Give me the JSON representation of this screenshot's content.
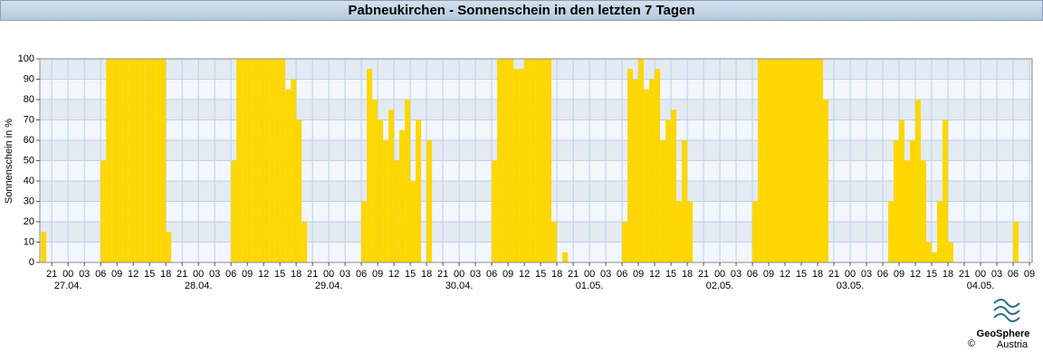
{
  "chart_data": {
    "type": "bar",
    "title": "Pabneukirchen - Sonnenschein in den letzten 7 Tagen",
    "y_label": "Sonnenschein in %",
    "color": "#ffd700",
    "grid": true,
    "xlim": [
      18.8,
      201.5
    ],
    "ylim": [
      0,
      100
    ],
    "yticks": [
      0,
      10,
      20,
      30,
      40,
      50,
      60,
      70,
      80,
      90,
      100
    ],
    "xticks": [
      {
        "value": 21,
        "label": "21"
      },
      {
        "value": 24,
        "label": "00"
      },
      {
        "value": 27,
        "label": "03"
      },
      {
        "value": 30,
        "label": "06"
      },
      {
        "value": 33,
        "label": "09"
      },
      {
        "value": 36,
        "label": "12"
      },
      {
        "value": 39,
        "label": "15"
      },
      {
        "value": 42,
        "label": "18"
      },
      {
        "value": 45,
        "label": "21"
      },
      {
        "value": 48,
        "label": "00"
      },
      {
        "value": 51,
        "label": "03"
      },
      {
        "value": 54,
        "label": "06"
      },
      {
        "value": 57,
        "label": "09"
      },
      {
        "value": 60,
        "label": "12"
      },
      {
        "value": 63,
        "label": "15"
      },
      {
        "value": 66,
        "label": "18"
      },
      {
        "value": 69,
        "label": "21"
      },
      {
        "value": 72,
        "label": "00"
      },
      {
        "value": 75,
        "label": "03"
      },
      {
        "value": 78,
        "label": "06"
      },
      {
        "value": 81,
        "label": "09"
      },
      {
        "value": 84,
        "label": "12"
      },
      {
        "value": 87,
        "label": "15"
      },
      {
        "value": 90,
        "label": "18"
      },
      {
        "value": 93,
        "label": "21"
      },
      {
        "value": 96,
        "label": "00"
      },
      {
        "value": 99,
        "label": "03"
      },
      {
        "value": 102,
        "label": "06"
      },
      {
        "value": 105,
        "label": "09"
      },
      {
        "value": 108,
        "label": "12"
      },
      {
        "value": 111,
        "label": "15"
      },
      {
        "value": 114,
        "label": "18"
      },
      {
        "value": 117,
        "label": "21"
      },
      {
        "value": 120,
        "label": "00"
      },
      {
        "value": 123,
        "label": "03"
      },
      {
        "value": 126,
        "label": "06"
      },
      {
        "value": 129,
        "label": "09"
      },
      {
        "value": 132,
        "label": "12"
      },
      {
        "value": 135,
        "label": "15"
      },
      {
        "value": 138,
        "label": "18"
      },
      {
        "value": 141,
        "label": "21"
      },
      {
        "value": 144,
        "label": "00"
      },
      {
        "value": 147,
        "label": "03"
      },
      {
        "value": 150,
        "label": "06"
      },
      {
        "value": 153,
        "label": "09"
      },
      {
        "value": 156,
        "label": "12"
      },
      {
        "value": 159,
        "label": "15"
      },
      {
        "value": 162,
        "label": "18"
      },
      {
        "value": 165,
        "label": "21"
      },
      {
        "value": 168,
        "label": "00"
      },
      {
        "value": 171,
        "label": "03"
      },
      {
        "value": 174,
        "label": "06"
      },
      {
        "value": 177,
        "label": "09"
      },
      {
        "value": 180,
        "label": "12"
      },
      {
        "value": 183,
        "label": "15"
      },
      {
        "value": 186,
        "label": "18"
      },
      {
        "value": 189,
        "label": "21"
      },
      {
        "value": 192,
        "label": "00"
      },
      {
        "value": 195,
        "label": "03"
      },
      {
        "value": 198,
        "label": "06"
      },
      {
        "value": 201,
        "label": "09"
      }
    ],
    "day_labels": [
      {
        "value": 24,
        "label": "27.04."
      },
      {
        "value": 48,
        "label": "28.04."
      },
      {
        "value": 72,
        "label": "29.04."
      },
      {
        "value": 96,
        "label": "30.04."
      },
      {
        "value": 120,
        "label": "01.05."
      },
      {
        "value": 144,
        "label": "02.05."
      },
      {
        "value": 168,
        "label": "03.05."
      },
      {
        "value": 192,
        "label": "04.05."
      }
    ],
    "x": [
      19,
      20,
      21,
      22,
      23,
      24,
      25,
      26,
      27,
      28,
      29,
      30,
      31,
      32,
      33,
      34,
      35,
      36,
      37,
      38,
      39,
      40,
      41,
      42,
      43,
      44,
      45,
      46,
      47,
      48,
      49,
      50,
      51,
      52,
      53,
      54,
      55,
      56,
      57,
      58,
      59,
      60,
      61,
      62,
      63,
      64,
      65,
      66,
      67,
      68,
      69,
      70,
      71,
      72,
      73,
      74,
      75,
      76,
      77,
      78,
      79,
      80,
      81,
      82,
      83,
      84,
      85,
      86,
      87,
      88,
      89,
      90,
      91,
      92,
      93,
      94,
      95,
      96,
      97,
      98,
      99,
      100,
      101,
      102,
      103,
      104,
      105,
      106,
      107,
      108,
      109,
      110,
      111,
      112,
      113,
      114,
      115,
      116,
      117,
      118,
      119,
      120,
      121,
      122,
      123,
      124,
      125,
      126,
      127,
      128,
      129,
      130,
      131,
      132,
      133,
      134,
      135,
      136,
      137,
      138,
      139,
      140,
      141,
      142,
      143,
      144,
      145,
      146,
      147,
      148,
      149,
      150,
      151,
      152,
      153,
      154,
      155,
      156,
      157,
      158,
      159,
      160,
      161,
      162,
      163,
      164,
      165,
      166,
      167,
      168,
      169,
      170,
      171,
      172,
      173,
      174,
      175,
      176,
      177,
      178,
      179,
      180,
      181,
      182,
      183,
      184,
      185,
      186,
      187,
      188,
      189,
      190,
      191,
      192,
      193,
      194,
      195,
      196,
      197,
      198,
      199,
      200
    ],
    "values": [
      15,
      0,
      0,
      0,
      0,
      0,
      0,
      0,
      0,
      0,
      0,
      50,
      100,
      100,
      100,
      100,
      100,
      100,
      100,
      100,
      100,
      100,
      100,
      15,
      0,
      0,
      0,
      0,
      0,
      0,
      0,
      0,
      0,
      0,
      0,
      50,
      100,
      100,
      100,
      100,
      100,
      100,
      100,
      100,
      100,
      85,
      90,
      70,
      20,
      0,
      0,
      0,
      0,
      0,
      0,
      0,
      0,
      0,
      0,
      30,
      95,
      80,
      70,
      60,
      75,
      50,
      65,
      80,
      40,
      70,
      0,
      60,
      0,
      0,
      0,
      0,
      0,
      0,
      0,
      0,
      0,
      0,
      0,
      50,
      100,
      100,
      100,
      95,
      95,
      100,
      100,
      100,
      100,
      100,
      20,
      0,
      5,
      0,
      0,
      0,
      0,
      0,
      0,
      0,
      0,
      0,
      0,
      20,
      95,
      90,
      100,
      85,
      90,
      95,
      60,
      70,
      75,
      30,
      60,
      30,
      0,
      0,
      0,
      0,
      0,
      0,
      0,
      0,
      0,
      0,
      0,
      30,
      100,
      100,
      100,
      100,
      100,
      100,
      100,
      100,
      100,
      100,
      100,
      100,
      80,
      0,
      0,
      0,
      0,
      0,
      0,
      0,
      0,
      0,
      0,
      0,
      30,
      60,
      70,
      50,
      60,
      80,
      50,
      10,
      5,
      30,
      70,
      10,
      0,
      0,
      0,
      0,
      0,
      0,
      0,
      0,
      0,
      0,
      0,
      20,
      0,
      0
    ]
  },
  "footer": {
    "logo_name": "GeoSphere",
    "logo_sub": "Austria",
    "copyright": "©"
  }
}
